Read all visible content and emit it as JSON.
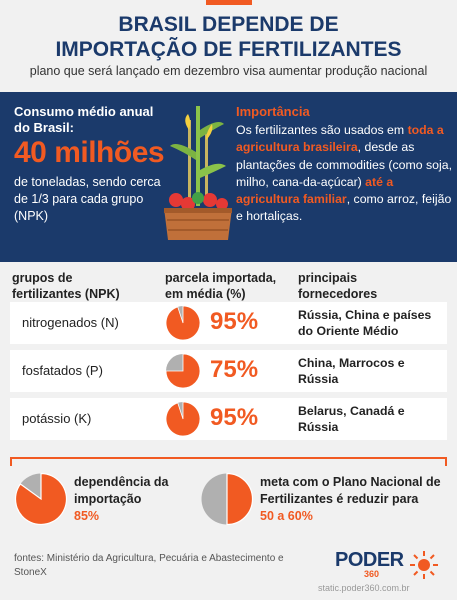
{
  "header": {
    "title_line1": "BRASIL DEPENDE DE",
    "title_line2": "IMPORTAÇÃO DE FERTILIZANTES",
    "subtitle": "plano que será lançado em dezembro visa aumentar produção nacional"
  },
  "consumo": {
    "title": "Consumo médio anual do Brasil:",
    "value": "40 milhões",
    "desc": "de toneladas, sendo cerca de 1/3 para cada grupo (NPK)"
  },
  "importancia": {
    "title": "Importância",
    "t1": "Os fertilizantes são usados em ",
    "h1": "toda a agricultura brasileira",
    "t2": ", desde as plantações de commodities (como soja, milho, cana-da-açúcar) ",
    "h2": "até a agricultura familiar",
    "t3": ", como arroz, feijão e hortaliças."
  },
  "table": {
    "col1": "grupos de fertilizantes (NPK)",
    "col2": "parcela importada, em média (%)",
    "col3": "principais fornecedores",
    "rows": [
      {
        "label": "nitrogenados (N)",
        "pct": "95%",
        "share": 0.95,
        "suppliers": "Rússia, China e países do Oriente Médio"
      },
      {
        "label": "fosfatados (P)",
        "pct": "75%",
        "share": 0.75,
        "suppliers": "China, Marrocos e Rússia"
      },
      {
        "label": "potássio (K)",
        "pct": "95%",
        "share": 0.95,
        "suppliers": "Belarus, Canadá e Rússia"
      }
    ]
  },
  "summary": {
    "dep_text": "dependência da importação",
    "dep_value": "85%",
    "dep_share": 0.85,
    "meta_text": "meta com o Plano Nacional de Fertilizantes é reduzir para",
    "meta_value": "50 a 60%",
    "meta_share": 0.5
  },
  "footer": {
    "fontes": "fontes: Ministério da Agricultura, Pecuária e Abastecimento e StoneX",
    "logo": "PODER",
    "logo_num": "360",
    "url": "static.poder360.com.br"
  },
  "colors": {
    "navy": "#1b3a6b",
    "orange": "#f15a22",
    "gray": "#b0b0b0"
  }
}
